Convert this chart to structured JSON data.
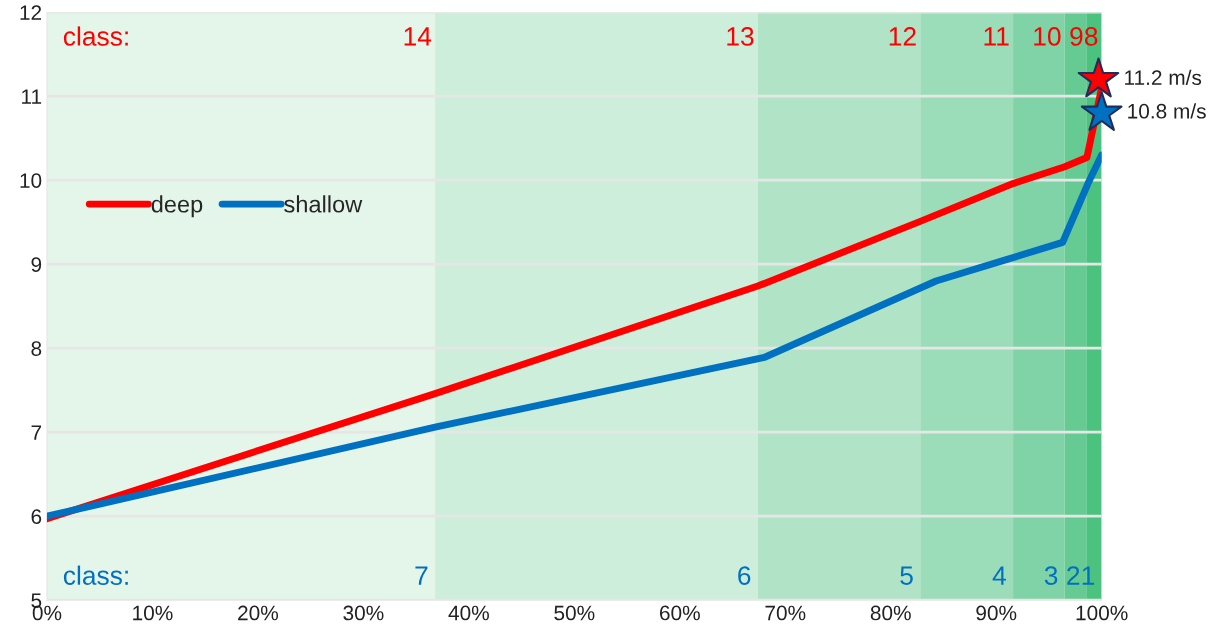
{
  "chart_data": {
    "type": "line",
    "series": [
      {
        "name": "deep",
        "color": "#ff0000",
        "x": [
          0,
          36.8,
          67.4,
          82.8,
          91.6,
          96.5,
          98.6,
          100
        ],
        "values": [
          5.97,
          7.46,
          8.74,
          9.51,
          9.96,
          10.16,
          10.27,
          11.1
        ]
      },
      {
        "name": "shallow",
        "color": "#0070c0",
        "x": [
          0,
          36.8,
          68,
          84.3,
          96.3,
          98.7,
          100
        ],
        "values": [
          6.0,
          7.06,
          7.89,
          8.8,
          9.26,
          9.96,
          10.3
        ]
      },
      {
        "type": "scatter",
        "marker": "star",
        "color": "#ff0000",
        "x": [
          99.7
        ],
        "values": [
          11.2
        ],
        "value_labels": [
          "11.2 m/s"
        ]
      },
      {
        "type": "scatter",
        "marker": "star",
        "color": "#0070c0",
        "x": [
          100
        ],
        "values": [
          10.8
        ],
        "value_labels": [
          "10.8 m/s"
        ]
      }
    ],
    "xlim": [
      0,
      100
    ],
    "xticks": [
      {
        "value": 0,
        "label": "0%"
      },
      {
        "value": 10,
        "label": "10%"
      },
      {
        "value": 20,
        "label": "20%"
      },
      {
        "value": 30,
        "label": "30%"
      },
      {
        "value": 40,
        "label": "40%"
      },
      {
        "value": 50,
        "label": "50%"
      },
      {
        "value": 60,
        "label": "60%"
      },
      {
        "value": 70,
        "label": "70%"
      },
      {
        "value": 80,
        "label": "80%"
      },
      {
        "value": 90,
        "label": "90%"
      },
      {
        "value": 100,
        "label": "100%"
      }
    ],
    "ylim": [
      5,
      12
    ],
    "yticks": [
      5,
      6,
      7,
      8,
      9,
      10,
      11,
      12
    ],
    "grid": "y",
    "legend": "left",
    "line_style": "solid",
    "marker": "none",
    "bands": [
      {
        "axis": "x",
        "from": 0,
        "to": 36.8,
        "color": "#e4f5ea",
        "label": "14"
      },
      {
        "axis": "x",
        "from": 36.8,
        "to": 67.4,
        "color": "#cdeedb",
        "label": "13"
      },
      {
        "axis": "x",
        "from": 67.4,
        "to": 82.8,
        "color": "#b1e4c7",
        "label": "12"
      },
      {
        "axis": "x",
        "from": 82.8,
        "to": 91.6,
        "color": "#9bddb9",
        "label": "11"
      },
      {
        "axis": "x",
        "from": 91.6,
        "to": 96.5,
        "color": "#80d3a6",
        "label": "10"
      },
      {
        "axis": "x",
        "from": 96.5,
        "to": 98.6,
        "color": "#66cb93",
        "label": "9"
      },
      {
        "axis": "x",
        "from": 98.6,
        "to": 100,
        "color": "#4cc27f",
        "label": "8"
      }
    ],
    "annotations": [
      "class:",
      "class:",
      "7",
      "6",
      "5",
      "4",
      "3",
      "2",
      "1"
    ]
  }
}
